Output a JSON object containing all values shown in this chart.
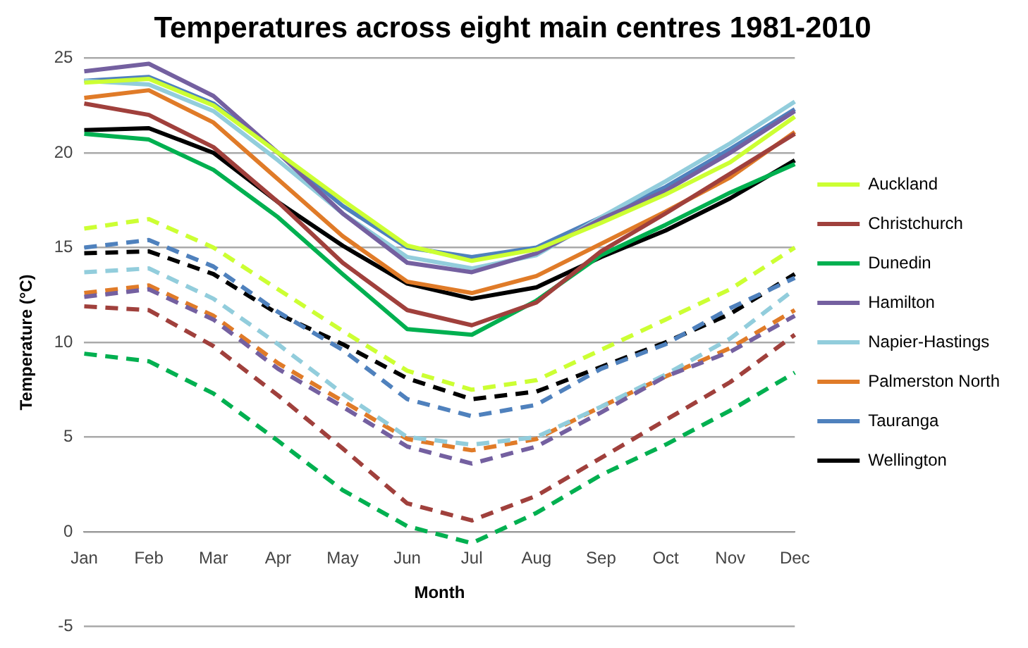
{
  "chart_data": {
    "type": "line",
    "title": "Temperatures across eight main centres 1981-2010",
    "xlabel": "Month",
    "ylabel": "Temperature (°C)",
    "categories": [
      "Jan",
      "Feb",
      "Mar",
      "Apr",
      "May",
      "Jun",
      "Jul",
      "Aug",
      "Sep",
      "Oct",
      "Nov",
      "Dec"
    ],
    "ylim": [
      -5,
      25
    ],
    "yticks": [
      -5,
      0,
      5,
      10,
      15,
      20,
      25
    ],
    "grid": "y",
    "legend": "right",
    "marker": "none",
    "series": [
      {
        "name": "Auckland",
        "color": "#ccff33",
        "line_style": "solid",
        "values": [
          23.7,
          23.9,
          22.5,
          20.0,
          17.5,
          15.1,
          14.3,
          14.9,
          16.3,
          17.8,
          19.5,
          21.9
        ]
      },
      {
        "name": "Christchurch",
        "color": "#a0403c",
        "line_style": "solid",
        "values": [
          22.6,
          22.0,
          20.3,
          17.4,
          14.2,
          11.7,
          10.9,
          12.1,
          14.8,
          16.8,
          18.9,
          21.0
        ]
      },
      {
        "name": "Dunedin",
        "color": "#00b050",
        "line_style": "solid",
        "values": [
          21.0,
          20.7,
          19.1,
          16.6,
          13.6,
          10.7,
          10.4,
          12.2,
          14.6,
          16.2,
          17.9,
          19.4
        ]
      },
      {
        "name": "Hamilton",
        "color": "#7460a0",
        "line_style": "solid",
        "values": [
          24.3,
          24.7,
          23.0,
          20.0,
          16.8,
          14.2,
          13.7,
          14.7,
          16.5,
          18.0,
          20.0,
          22.2
        ]
      },
      {
        "name": "Napier-Hastings",
        "color": "#92cddc",
        "line_style": "solid",
        "values": [
          23.8,
          23.6,
          22.2,
          19.6,
          16.8,
          14.5,
          13.9,
          14.6,
          16.6,
          18.5,
          20.5,
          22.7
        ]
      },
      {
        "name": "Palmerston North",
        "color": "#e07b28",
        "line_style": "solid",
        "values": [
          22.9,
          23.3,
          21.6,
          18.6,
          15.6,
          13.2,
          12.6,
          13.5,
          15.2,
          16.9,
          18.7,
          21.1
        ]
      },
      {
        "name": "Tauranga",
        "color": "#4f81bd",
        "line_style": "solid",
        "values": [
          23.8,
          24.0,
          22.6,
          20.0,
          17.2,
          15.0,
          14.5,
          15.0,
          16.6,
          18.2,
          20.2,
          22.3
        ]
      },
      {
        "name": "Wellington",
        "color": "#000000",
        "line_style": "solid",
        "values": [
          21.2,
          21.3,
          20.0,
          17.4,
          15.1,
          13.1,
          12.3,
          12.9,
          14.5,
          15.9,
          17.6,
          19.6
        ]
      },
      {
        "color": "#ccff33",
        "line_style": "dashed",
        "values": [
          16.0,
          16.5,
          15.0,
          12.8,
          10.6,
          8.5,
          7.5,
          8.0,
          9.6,
          11.2,
          12.8,
          15.0
        ]
      },
      {
        "color": "#a0403c",
        "line_style": "dashed",
        "values": [
          11.9,
          11.7,
          9.8,
          7.2,
          4.4,
          1.5,
          0.6,
          1.9,
          3.9,
          5.9,
          7.9,
          10.4
        ]
      },
      {
        "color": "#00b050",
        "line_style": "dashed",
        "values": [
          9.4,
          9.0,
          7.3,
          4.8,
          2.2,
          0.3,
          -0.6,
          1.0,
          3.0,
          4.6,
          6.4,
          8.4
        ]
      },
      {
        "color": "#7460a0",
        "line_style": "dashed",
        "values": [
          12.4,
          12.8,
          11.2,
          8.6,
          6.6,
          4.5,
          3.6,
          4.5,
          6.3,
          8.2,
          9.5,
          11.4
        ]
      },
      {
        "color": "#92cddc",
        "line_style": "dashed",
        "values": [
          13.7,
          13.9,
          12.3,
          9.9,
          7.3,
          5.0,
          4.6,
          5.0,
          6.6,
          8.3,
          10.2,
          12.8
        ]
      },
      {
        "color": "#e07b28",
        "line_style": "dashed",
        "values": [
          12.6,
          13.0,
          11.4,
          8.9,
          6.9,
          4.9,
          4.3,
          4.9,
          6.6,
          8.2,
          9.7,
          11.7
        ]
      },
      {
        "color": "#4f81bd",
        "line_style": "dashed",
        "values": [
          15.0,
          15.4,
          14.0,
          11.6,
          9.6,
          7.0,
          6.1,
          6.7,
          8.6,
          9.9,
          11.8,
          13.4
        ]
      },
      {
        "color": "#000000",
        "line_style": "dashed",
        "values": [
          14.7,
          14.8,
          13.6,
          11.5,
          9.9,
          8.1,
          7.0,
          7.4,
          8.7,
          10.0,
          11.5,
          13.6
        ]
      }
    ]
  }
}
